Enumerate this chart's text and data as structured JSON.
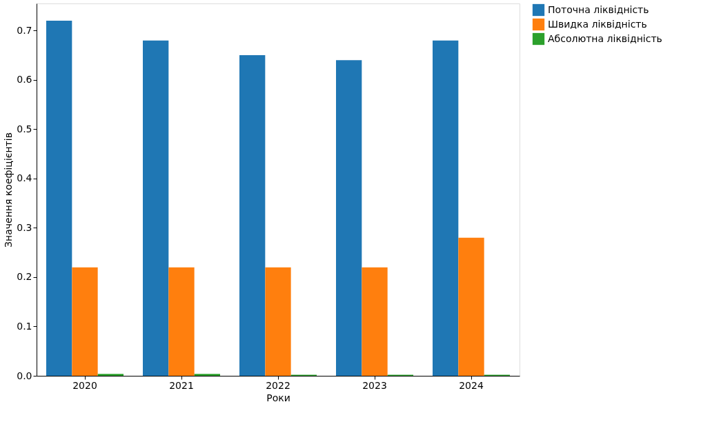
{
  "chart_data": {
    "type": "bar",
    "xlabel": "Роки",
    "ylabel": "Значення коефіцієнтів",
    "categories": [
      "2020",
      "2021",
      "2022",
      "2023",
      "2024"
    ],
    "series": [
      {
        "name": "Поточна ліквідність",
        "color": "#1f77b4",
        "values": [
          0.72,
          0.68,
          0.65,
          0.64,
          0.68
        ]
      },
      {
        "name": "Швидка ліквідність",
        "color": "#ff7f0e",
        "values": [
          0.22,
          0.22,
          0.22,
          0.22,
          0.28
        ]
      },
      {
        "name": "Абсолютна ліквідність",
        "color": "#2ca02c",
        "values": [
          0.004,
          0.004,
          0.002,
          0.002,
          0.002
        ]
      }
    ],
    "ylim": [
      0,
      0.755
    ],
    "yticks": [
      {
        "value": 0,
        "label": "0.0"
      },
      0.1,
      0.2,
      0.3,
      0.4,
      0.5,
      0.6,
      0.7
    ],
    "grid": false,
    "legend": "top right"
  }
}
